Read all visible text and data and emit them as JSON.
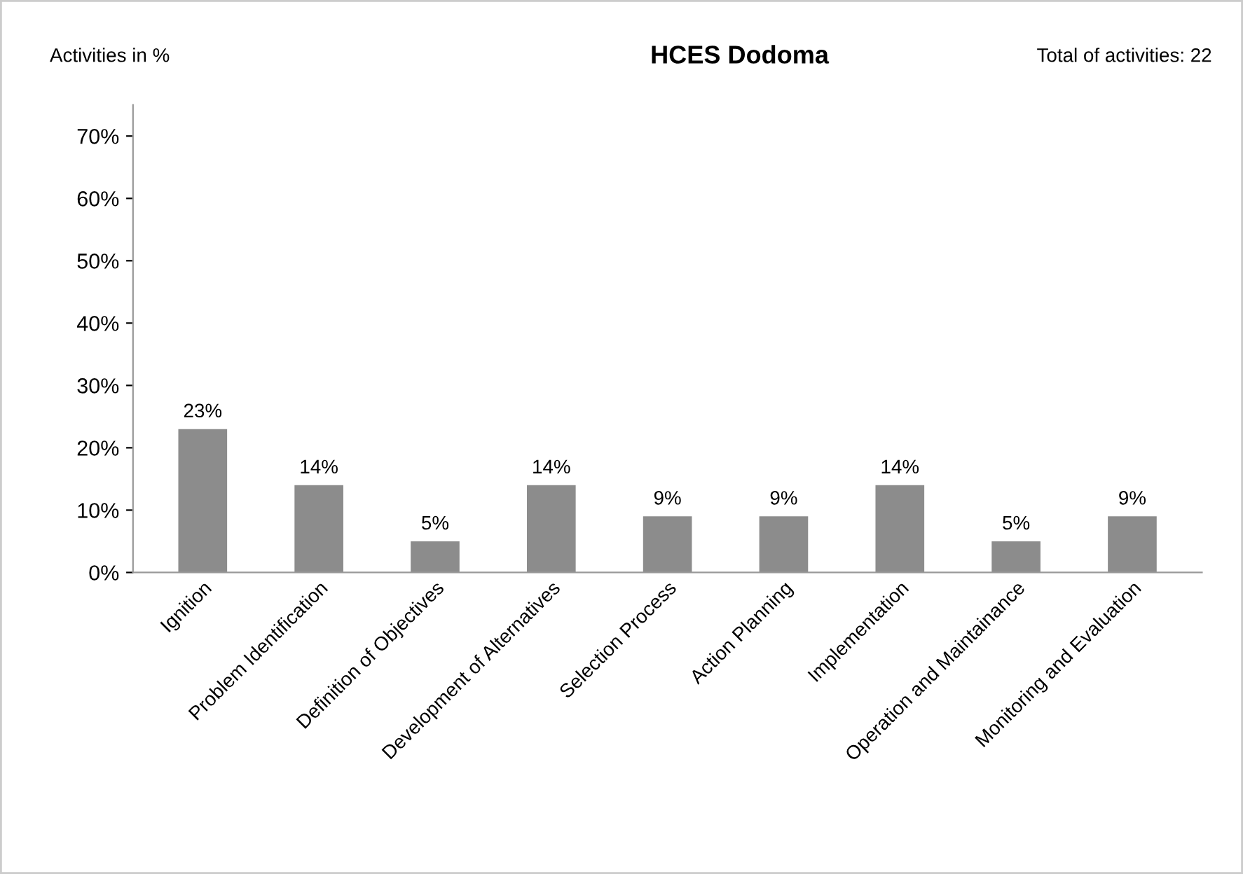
{
  "chart_data": {
    "type": "bar",
    "title": "HCES Dodoma",
    "ylabel": "Activities in %",
    "annotations": [
      "Total of activities: 22"
    ],
    "categories": [
      "Ignition",
      "Problem Identification",
      "Definition of Objectives",
      "Development of Alternatives",
      "Selection Process",
      "Action Planning",
      "Implementation",
      "Operation and Maintainance",
      "Monitoring and Evaluation"
    ],
    "values": [
      23,
      14,
      5,
      14,
      9,
      9,
      14,
      5,
      9
    ],
    "value_labels": [
      "23%",
      "14%",
      "5%",
      "14%",
      "9%",
      "9%",
      "14%",
      "5%",
      "9%"
    ],
    "color": "#8c8c8c",
    "ylim": [
      0,
      75
    ],
    "yticks": [
      {
        "value": 0,
        "label": "0%"
      },
      {
        "value": 10,
        "label": "10%"
      },
      {
        "value": 20,
        "label": "20%"
      },
      {
        "value": 30,
        "label": "30%"
      },
      {
        "value": 40,
        "label": "40%"
      },
      {
        "value": 50,
        "label": "50%"
      },
      {
        "value": 60,
        "label": "60%"
      },
      {
        "value": 70,
        "label": "70%"
      }
    ],
    "grid": false,
    "legend": false
  }
}
